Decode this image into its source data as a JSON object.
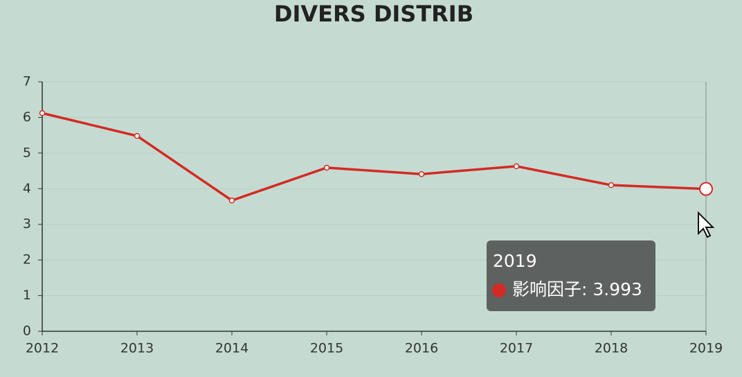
{
  "chart_data": {
    "type": "line",
    "title": "DIVERS DISTRIB",
    "categories": [
      "2012",
      "2013",
      "2014",
      "2015",
      "2016",
      "2017",
      "2018",
      "2019"
    ],
    "series": [
      {
        "name": "影响因子",
        "color": "#d42a23",
        "values": [
          6.12,
          5.48,
          3.67,
          4.59,
          4.41,
          4.63,
          4.1,
          3.993
        ]
      }
    ],
    "ylim": [
      0,
      7
    ],
    "yticks": [
      0,
      1,
      2,
      3,
      4,
      5,
      6,
      7
    ],
    "grid": true,
    "tooltip_text": "影响因子: 3.993"
  }
}
